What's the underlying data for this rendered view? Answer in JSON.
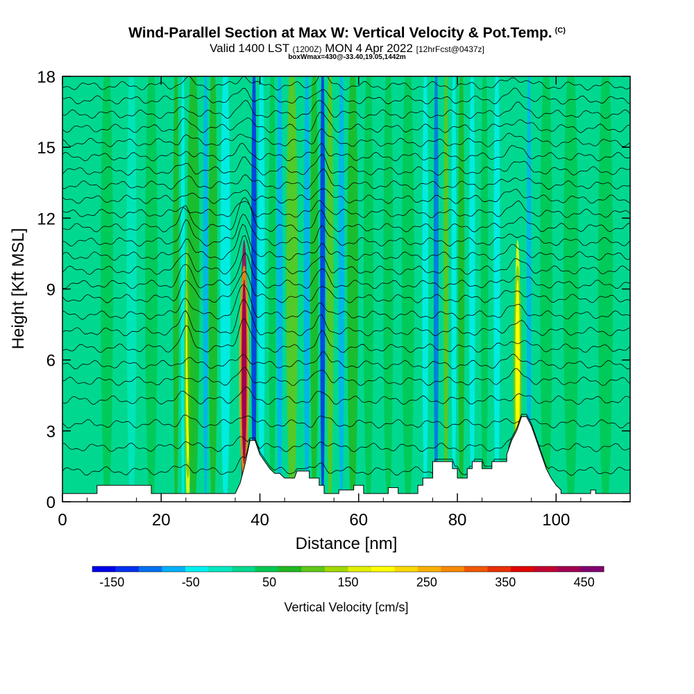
{
  "title": {
    "main": "Wind-Parallel Section at Max W: Vertical Velocity & Pot.Temp.",
    "copyright": "(C)",
    "valid_prefix": "Valid 1400 LST",
    "valid_utc": "(1200Z)",
    "valid_date": "MON 4 Apr 2022",
    "forecast": "[12hrFcst@0437z]",
    "subinfo": "boxWmax=430@-33.40,19.05,1442m"
  },
  "chart_data": {
    "type": "heatmap",
    "title": "Wind-Parallel Section at Max W: Vertical Velocity & Pot.Temp.",
    "xlabel": "Distance [nm]",
    "ylabel": "Height [Kft MSL]",
    "xlim": [
      0,
      115
    ],
    "ylim": [
      0,
      18
    ],
    "x_ticks": [
      0,
      20,
      40,
      60,
      80,
      100
    ],
    "y_ticks": [
      0,
      3,
      6,
      9,
      12,
      15,
      18
    ],
    "colorbar": {
      "label": "Vertical Velocity [cm/s]",
      "tick_labels": [
        "-150",
        "-50",
        "50",
        "150",
        "250",
        "350",
        "450"
      ],
      "tick_values": [
        -150,
        -50,
        50,
        150,
        250,
        350,
        450
      ],
      "range": [
        -175,
        475
      ],
      "colors": [
        "#0000e8",
        "#0030f0",
        "#0070f0",
        "#00b0f8",
        "#00f0f0",
        "#00e8c0",
        "#00d890",
        "#00c850",
        "#20b820",
        "#60c818",
        "#a0d800",
        "#e0f000",
        "#ffff00",
        "#f8d800",
        "#f8b000",
        "#f88800",
        "#f05800",
        "#e83000",
        "#e00000",
        "#c00030",
        "#a00050",
        "#800070"
      ]
    },
    "terrain_kft": [
      [
        0,
        0.35
      ],
      [
        7,
        0.35
      ],
      [
        7,
        0.7
      ],
      [
        18,
        0.7
      ],
      [
        18,
        0.35
      ],
      [
        35,
        0.35
      ],
      [
        36,
        0.8
      ],
      [
        37,
        1.6
      ],
      [
        38,
        2.6
      ],
      [
        39,
        2.6
      ],
      [
        40,
        2.0
      ],
      [
        41,
        1.7
      ],
      [
        42,
        1.4
      ],
      [
        43,
        1.2
      ],
      [
        44,
        1.2
      ],
      [
        45,
        1.0
      ],
      [
        47,
        1.0
      ],
      [
        47.5,
        1.3
      ],
      [
        50,
        1.3
      ],
      [
        50,
        1.0
      ],
      [
        52,
        1.0
      ],
      [
        52,
        0.7
      ],
      [
        53,
        0.7
      ],
      [
        53,
        0.35
      ],
      [
        54,
        0.35
      ],
      [
        56,
        0.35
      ],
      [
        56,
        0.5
      ],
      [
        59,
        0.5
      ],
      [
        59,
        0.7
      ],
      [
        61,
        0.7
      ],
      [
        61,
        0.35
      ],
      [
        66,
        0.35
      ],
      [
        66,
        0.6
      ],
      [
        68,
        0.6
      ],
      [
        68,
        0.35
      ],
      [
        70,
        0.35
      ],
      [
        72,
        0.35
      ],
      [
        72,
        0.7
      ],
      [
        73,
        0.7
      ],
      [
        73,
        1.0
      ],
      [
        75,
        1.0
      ],
      [
        75,
        1.7
      ],
      [
        79,
        1.7
      ],
      [
        79,
        1.4
      ],
      [
        80,
        1.4
      ],
      [
        80,
        1.0
      ],
      [
        82,
        1.0
      ],
      [
        82,
        1.4
      ],
      [
        83,
        1.4
      ],
      [
        83,
        1.7
      ],
      [
        85,
        1.7
      ],
      [
        85,
        1.4
      ],
      [
        87,
        1.4
      ],
      [
        87,
        1.7
      ],
      [
        90,
        1.7
      ],
      [
        90,
        2.0
      ],
      [
        91,
        2.6
      ],
      [
        92,
        3.0
      ],
      [
        93,
        3.6
      ],
      [
        94,
        3.6
      ],
      [
        95,
        3.2
      ],
      [
        96,
        2.6
      ],
      [
        97,
        2.0
      ],
      [
        98,
        1.4
      ],
      [
        99,
        1.0
      ],
      [
        100,
        0.7
      ],
      [
        101,
        0.5
      ],
      [
        101,
        0.35
      ],
      [
        107,
        0.35
      ],
      [
        107,
        0.5
      ],
      [
        108,
        0.5
      ],
      [
        108,
        0.35
      ],
      [
        115,
        0.35
      ]
    ],
    "columns": [
      {
        "x": 3,
        "w": 3.0,
        "value": 30
      },
      {
        "x": 9,
        "w": 2.5,
        "value": 55
      },
      {
        "x": 14,
        "w": 2.0,
        "value": -25
      },
      {
        "x": 18,
        "w": 2.5,
        "value": 60
      },
      {
        "x": 23,
        "w": 1.2,
        "value": 70
      },
      {
        "x": 24.4,
        "w": 0.8,
        "value": -55
      },
      {
        "x": 25.4,
        "w": 1.1,
        "value": 190
      },
      {
        "x": 26.5,
        "w": 2.5,
        "value": 75
      },
      {
        "x": 29,
        "w": 1.0,
        "value": -70
      },
      {
        "x": 30.5,
        "w": 1.8,
        "value": 70
      },
      {
        "x": 33,
        "w": 2.0,
        "value": -40
      },
      {
        "x": 36.8,
        "w": 1.5,
        "value": 420
      },
      {
        "x": 38.8,
        "w": 1.1,
        "value": -140
      },
      {
        "x": 40.3,
        "w": 1.4,
        "value": -45
      },
      {
        "x": 42.5,
        "w": 1.5,
        "value": 60
      },
      {
        "x": 44,
        "w": 1.2,
        "value": -60
      },
      {
        "x": 46.5,
        "w": 2.3,
        "value": 100
      },
      {
        "x": 49.5,
        "w": 1.2,
        "value": -60
      },
      {
        "x": 51,
        "w": 1.6,
        "value": 65
      },
      {
        "x": 52.7,
        "w": 1.0,
        "value": -135
      },
      {
        "x": 54.2,
        "w": 1.4,
        "value": 95
      },
      {
        "x": 56.5,
        "w": 1.2,
        "value": -85
      },
      {
        "x": 58.8,
        "w": 2.2,
        "value": 80
      },
      {
        "x": 62,
        "w": 2.0,
        "value": 45
      },
      {
        "x": 66,
        "w": 2.0,
        "value": 55
      },
      {
        "x": 70,
        "w": 2.5,
        "value": 60
      },
      {
        "x": 73.5,
        "w": 1.2,
        "value": -30
      },
      {
        "x": 75.7,
        "w": 1.0,
        "value": -90
      },
      {
        "x": 77.7,
        "w": 1.0,
        "value": 95
      },
      {
        "x": 79.3,
        "w": 1.0,
        "value": -40
      },
      {
        "x": 80.8,
        "w": 1.3,
        "value": 90
      },
      {
        "x": 83,
        "w": 1.2,
        "value": -35
      },
      {
        "x": 85.5,
        "w": 1.5,
        "value": 55
      },
      {
        "x": 88,
        "w": 1.3,
        "value": -45
      },
      {
        "x": 92.2,
        "w": 1.3,
        "value": 190
      },
      {
        "x": 94.5,
        "w": 0.9,
        "value": -70
      },
      {
        "x": 98,
        "w": 2.5,
        "value": 50
      },
      {
        "x": 103,
        "w": 3.0,
        "value": 45
      },
      {
        "x": 110,
        "w": 3.0,
        "value": 40
      }
    ],
    "isentropes_kft": [
      1.3,
      2.3,
      3.3,
      4.3,
      5.1,
      5.8,
      6.5,
      7.2,
      7.9,
      8.6,
      9.2,
      9.8,
      10.4,
      11.0,
      11.6,
      12.2,
      12.8,
      13.4,
      14.0,
      14.6,
      15.2,
      15.8,
      16.4,
      17.0,
      17.6
    ]
  }
}
